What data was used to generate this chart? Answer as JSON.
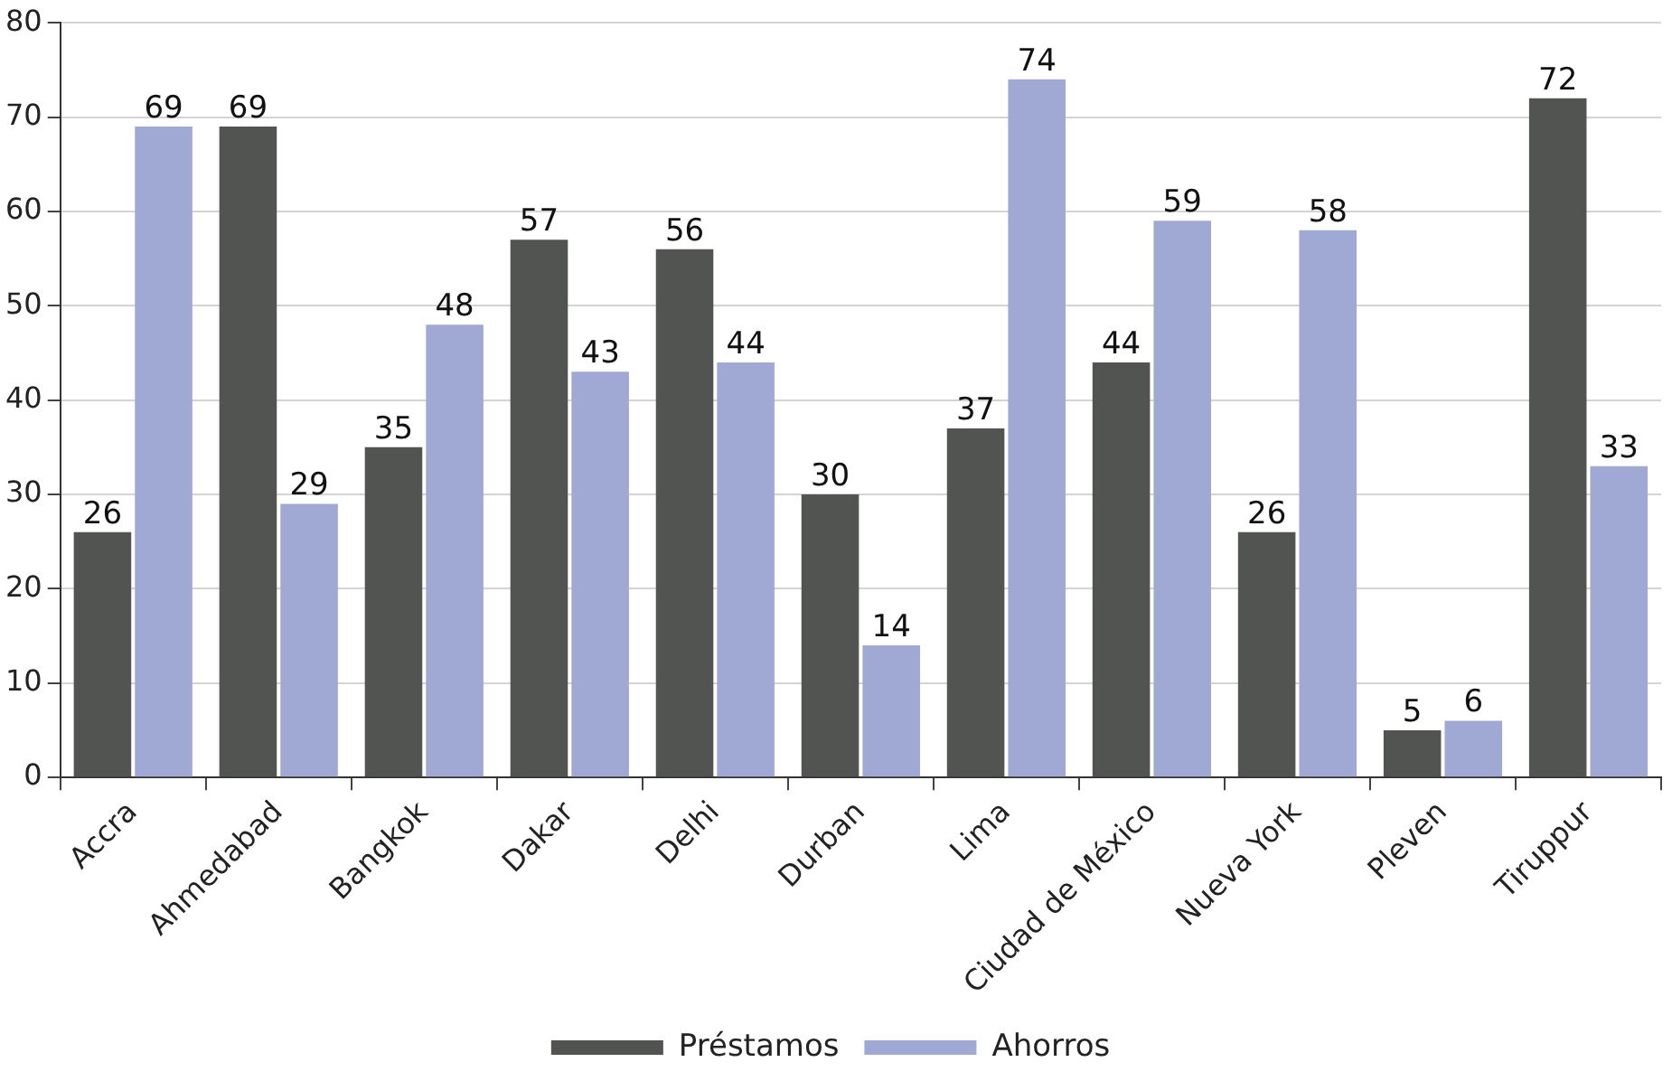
{
  "chart_data": {
    "type": "bar",
    "categories": [
      "Accra",
      "Ahmedabad",
      "Bangkok",
      "Dakar",
      "Delhi",
      "Durban",
      "Lima",
      "Ciudad de México",
      "Nueva York",
      "Pleven",
      "Tiruppur"
    ],
    "series": [
      {
        "name": "Préstamos",
        "color": "#525452",
        "values": [
          26,
          69,
          35,
          57,
          56,
          30,
          37,
          44,
          26,
          5,
          72
        ]
      },
      {
        "name": "Ahorros",
        "color": "#a0a8d4",
        "values": [
          69,
          29,
          48,
          43,
          44,
          14,
          74,
          59,
          58,
          6,
          33
        ]
      }
    ],
    "ylim": [
      0,
      80
    ],
    "yticks": [
      0,
      10,
      20,
      30,
      40,
      50,
      60,
      70,
      80
    ],
    "grid": "y",
    "legend": "bottom",
    "data_labels": true
  }
}
